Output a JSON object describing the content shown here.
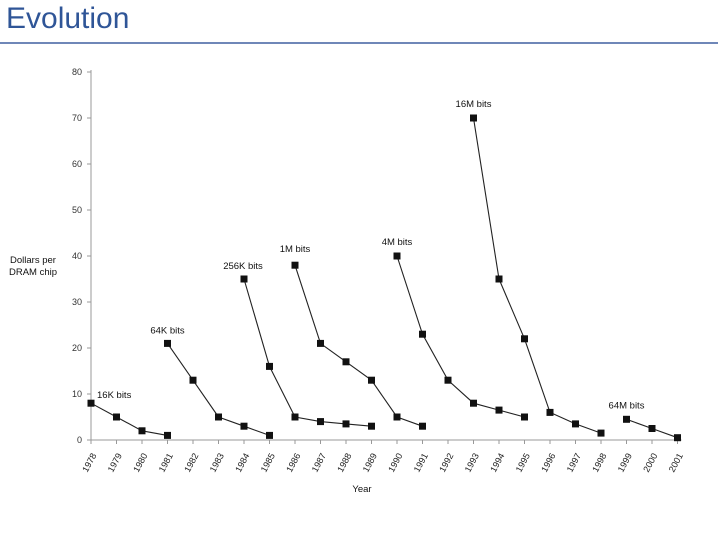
{
  "slide": {
    "title": "Evolution"
  },
  "chart_data": {
    "type": "line",
    "xlabel": "Year",
    "ylabel": [
      "Dollars per",
      "DRAM chip"
    ],
    "ylim": [
      0,
      80
    ],
    "yticks": [
      0,
      10,
      20,
      30,
      40,
      50,
      60,
      70,
      80
    ],
    "xticks": [
      "1978",
      "1979",
      "1980",
      "1981",
      "1982",
      "1983",
      "1984",
      "1985",
      "1986",
      "1987",
      "1988",
      "1989",
      "1990",
      "1991",
      "1992",
      "1993",
      "1994",
      "1995",
      "1996",
      "1997",
      "1998",
      "1999",
      "2000",
      "2001"
    ],
    "grid": false,
    "series": [
      {
        "name": "16K bits",
        "x": [
          1978,
          1979,
          1980,
          1981
        ],
        "y": [
          8,
          5,
          2,
          1
        ]
      },
      {
        "name": "64K bits",
        "x": [
          1981,
          1982,
          1983,
          1984,
          1985
        ],
        "y": [
          21,
          13,
          5,
          3,
          1
        ]
      },
      {
        "name": "256K bits",
        "x": [
          1984,
          1985,
          1986,
          1987,
          1988,
          1989
        ],
        "y": [
          35,
          16,
          5,
          4,
          3.5,
          3
        ]
      },
      {
        "name": "1M bits",
        "x": [
          1986,
          1987,
          1988,
          1989,
          1990,
          1991
        ],
        "y": [
          38,
          21,
          17,
          13,
          5,
          3
        ]
      },
      {
        "name": "4M bits",
        "x": [
          1990,
          1991,
          1992,
          1993,
          1994,
          1995
        ],
        "y": [
          40,
          23,
          13,
          8,
          6.5,
          5
        ]
      },
      {
        "name": "16M bits",
        "x": [
          1993,
          1994,
          1995,
          1996,
          1997,
          1998
        ],
        "y": [
          70,
          35,
          22,
          6,
          3.5,
          1.5
        ]
      },
      {
        "name": "64M bits",
        "x": [
          1999,
          2000,
          2001
        ],
        "y": [
          4.5,
          2.5,
          0.5
        ]
      }
    ]
  }
}
